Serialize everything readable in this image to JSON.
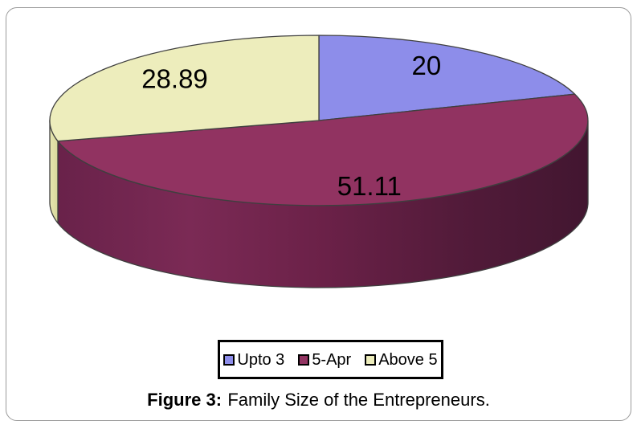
{
  "figure": {
    "caption_prefix": "Figure 3:",
    "caption_rest": "Family Size of the Entrepreneurs."
  },
  "chart_data": {
    "type": "pie",
    "style": "3d-cylinder",
    "title": "",
    "direction": "clockwise",
    "start_angle_deg": 0,
    "legend_position": "bottom-boxed",
    "label_color": "#000000",
    "outline_color": "#3f3f3f",
    "slices": [
      {
        "label": "Upto 3",
        "value": 20,
        "display_value": "20",
        "top_color": "#8d8dea",
        "side_gradient": [
          "#6a6ac8",
          "#50509e"
        ]
      },
      {
        "label": "5-Apr",
        "value": 51.11,
        "display_value": "51.11",
        "top_color": "#913361",
        "side_gradient": [
          "#69224a",
          "#7b2a55",
          "#6b2148",
          "#531b3a",
          "#421630"
        ]
      },
      {
        "label": "Above 5",
        "value": 28.89,
        "display_value": "28.89",
        "top_color": "#ededbc",
        "side_gradient": [
          "#e6e6b0",
          "#d8d89c"
        ]
      }
    ]
  }
}
